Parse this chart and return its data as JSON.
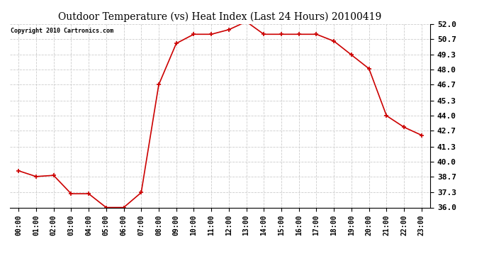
{
  "title": "Outdoor Temperature (vs) Heat Index (Last 24 Hours) 20100419",
  "copyright": "Copyright 2010 Cartronics.com",
  "x_labels": [
    "00:00",
    "01:00",
    "02:00",
    "03:00",
    "04:00",
    "05:00",
    "06:00",
    "07:00",
    "08:00",
    "09:00",
    "10:00",
    "11:00",
    "12:00",
    "13:00",
    "14:00",
    "15:00",
    "16:00",
    "17:00",
    "18:00",
    "19:00",
    "20:00",
    "21:00",
    "22:00",
    "23:00"
  ],
  "y_values": [
    39.2,
    38.7,
    38.8,
    37.2,
    37.2,
    36.0,
    36.0,
    37.3,
    46.7,
    50.3,
    51.1,
    51.1,
    51.5,
    52.2,
    51.1,
    51.1,
    51.1,
    51.1,
    50.5,
    49.3,
    48.1,
    44.0,
    43.0,
    42.3
  ],
  "line_color": "#cc0000",
  "marker": "+",
  "marker_color": "#cc0000",
  "marker_size": 5,
  "bg_color": "#ffffff",
  "grid_color": "#cccccc",
  "y_min": 36.0,
  "y_max": 52.0,
  "y_ticks": [
    36.0,
    37.3,
    38.7,
    40.0,
    41.3,
    42.7,
    44.0,
    45.3,
    46.7,
    48.0,
    49.3,
    50.7,
    52.0
  ],
  "title_fontsize": 10,
  "copyright_fontsize": 6,
  "tick_fontsize": 7,
  "ytick_fontsize": 8
}
